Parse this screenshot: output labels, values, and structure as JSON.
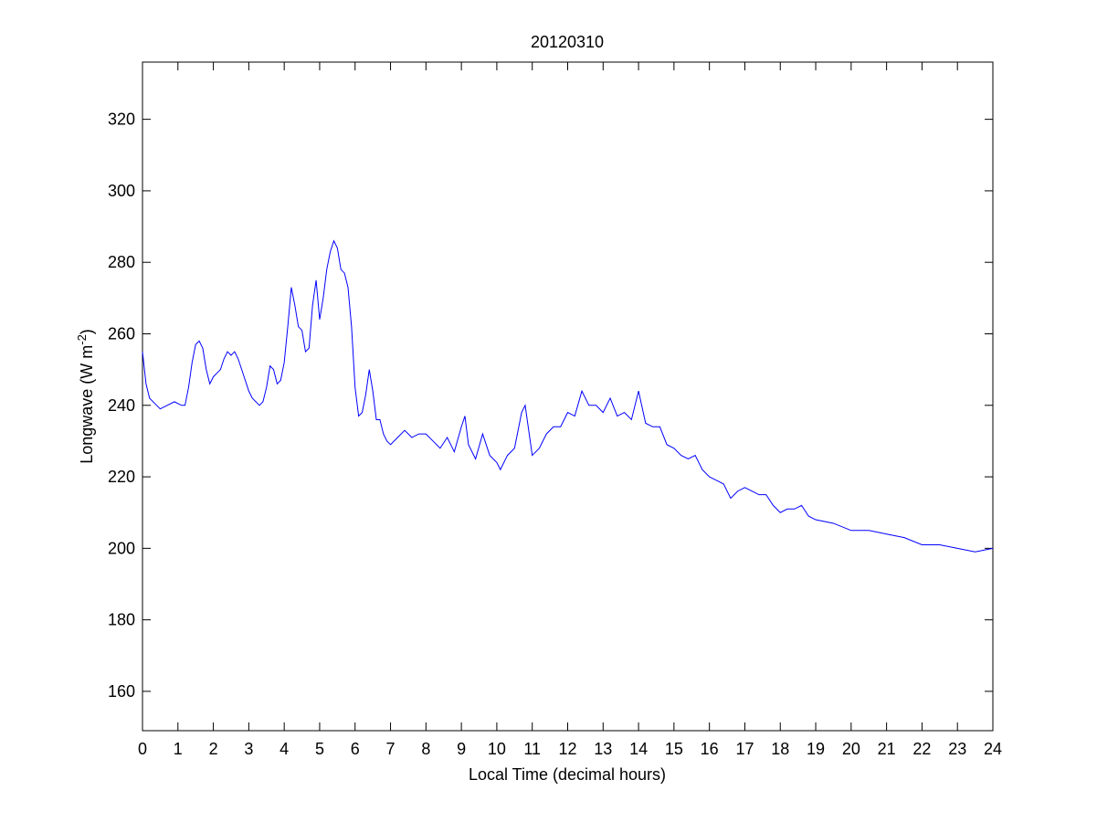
{
  "chart_data": {
    "type": "line",
    "title": "20120310",
    "x_label": "Local Time (decimal hours)",
    "y_label": {
      "text": "Longwave (W m",
      "superscript": "-2",
      "suffix": ")"
    },
    "x": [
      0,
      0.1,
      0.2,
      0.4,
      0.5,
      0.7,
      0.9,
      1.1,
      1.2,
      1.3,
      1.4,
      1.5,
      1.6,
      1.7,
      1.8,
      1.9,
      2.0,
      2.1,
      2.2,
      2.3,
      2.4,
      2.5,
      2.6,
      2.7,
      2.8,
      2.9,
      3.0,
      3.1,
      3.3,
      3.4,
      3.5,
      3.6,
      3.7,
      3.8,
      3.9,
      4.0,
      4.1,
      4.2,
      4.3,
      4.4,
      4.5,
      4.6,
      4.7,
      4.8,
      4.9,
      5.0,
      5.1,
      5.2,
      5.3,
      5.4,
      5.5,
      5.6,
      5.7,
      5.8,
      5.9,
      6.0,
      6.1,
      6.2,
      6.3,
      6.4,
      6.5,
      6.6,
      6.7,
      6.8,
      6.9,
      7.0,
      7.2,
      7.4,
      7.6,
      7.8,
      8.0,
      8.2,
      8.4,
      8.6,
      8.8,
      9.0,
      9.1,
      9.2,
      9.4,
      9.6,
      9.8,
      10.0,
      10.1,
      10.3,
      10.5,
      10.7,
      10.8,
      11.0,
      11.2,
      11.4,
      11.6,
      11.8,
      12.0,
      12.2,
      12.4,
      12.6,
      12.8,
      13.0,
      13.2,
      13.4,
      13.6,
      13.8,
      14.0,
      14.2,
      14.4,
      14.6,
      14.8,
      15.0,
      15.2,
      15.4,
      15.6,
      15.8,
      16.0,
      16.2,
      16.4,
      16.6,
      16.8,
      17.0,
      17.2,
      17.4,
      17.6,
      17.8,
      18.0,
      18.2,
      18.4,
      18.6,
      18.8,
      19.0,
      19.5,
      20.0,
      20.5,
      21.0,
      21.5,
      22.0,
      22.5,
      23.0,
      23.5,
      24.0
    ],
    "color": "#0000ff",
    "values": [
      255,
      246,
      242,
      240,
      239,
      240,
      241,
      240,
      240,
      245,
      252,
      257,
      258,
      256,
      250,
      246,
      248,
      249,
      250,
      253,
      255,
      254,
      255,
      253,
      250,
      247,
      244,
      242,
      240,
      241,
      245,
      251,
      250,
      246,
      247,
      252,
      262,
      273,
      268,
      262,
      261,
      255,
      256,
      268,
      275,
      264,
      270,
      278,
      283,
      286,
      284,
      278,
      277,
      273,
      262,
      245,
      237,
      238,
      243,
      250,
      244,
      236,
      236,
      232,
      230,
      229,
      231,
      233,
      231,
      232,
      232,
      230,
      228,
      231,
      227,
      234,
      237,
      229,
      225,
      232,
      226,
      224,
      222,
      226,
      228,
      238,
      240,
      226,
      228,
      232,
      234,
      234,
      238,
      237,
      244,
      240,
      240,
      238,
      242,
      237,
      238,
      236,
      244,
      235,
      234,
      234,
      229,
      228,
      226,
      225,
      226,
      222,
      220,
      219,
      218,
      214,
      216,
      217,
      216,
      215,
      215,
      212,
      210,
      211,
      211,
      212,
      209,
      208,
      207,
      205,
      205,
      204,
      203,
      201,
      201,
      200,
      199,
      200
    ],
    "xlim": [
      0,
      24
    ],
    "ylim": [
      149,
      336
    ],
    "xticks": [
      0,
      1,
      2,
      3,
      4,
      5,
      6,
      7,
      8,
      9,
      10,
      11,
      12,
      13,
      14,
      15,
      16,
      17,
      18,
      19,
      20,
      21,
      22,
      23,
      24
    ],
    "yticks": [
      160,
      180,
      200,
      220,
      240,
      260,
      280,
      300,
      320
    ]
  }
}
